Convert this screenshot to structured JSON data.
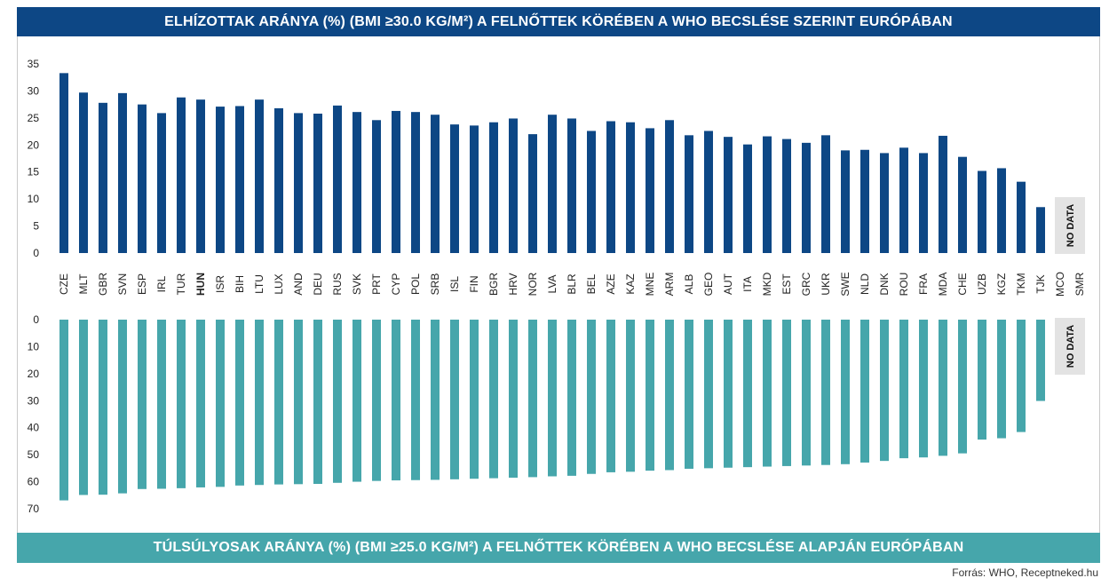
{
  "chart_data": [
    {
      "type": "bar",
      "title": "ELHÍZOTTAK ARÁNYA (%) (BMI ≥30.0 KG/M²) A FELNŐTTEK KÖRÉBEN A WHO BECSLÉSE SZERINT EURÓPÁBAN",
      "categories": [
        "CZE",
        "MLT",
        "GBR",
        "SVN",
        "ESP",
        "IRL",
        "TUR",
        "HUN",
        "ISR",
        "BIH",
        "LTU",
        "LUX",
        "AND",
        "DEU",
        "RUS",
        "SVK",
        "PRT",
        "CYP",
        "POL",
        "SRB",
        "ISL",
        "FIN",
        "BGR",
        "HRV",
        "NOR",
        "LVA",
        "BLR",
        "BEL",
        "AZE",
        "KAZ",
        "MNE",
        "ARM",
        "ALB",
        "GEO",
        "AUT",
        "ITA",
        "MKD",
        "EST",
        "GRC",
        "UKR",
        "SWE",
        "NLD",
        "DNK",
        "ROU",
        "FRA",
        "MDA",
        "CHE",
        "UZB",
        "KGZ",
        "TKM",
        "TJK",
        "MCO",
        "SMR"
      ],
      "values": [
        33.3,
        29.7,
        27.8,
        29.6,
        27.5,
        25.9,
        28.8,
        28.4,
        27.1,
        27.2,
        28.4,
        26.8,
        25.9,
        25.8,
        27.3,
        26.1,
        24.6,
        26.3,
        26.1,
        25.6,
        23.8,
        23.6,
        24.2,
        24.9,
        22.0,
        25.6,
        24.9,
        22.6,
        24.4,
        24.2,
        23.1,
        24.6,
        21.8,
        22.6,
        21.5,
        20.1,
        21.6,
        21.1,
        20.4,
        21.8,
        19.0,
        19.1,
        18.5,
        19.5,
        18.5,
        21.7,
        17.8,
        15.2,
        15.7,
        13.2,
        8.5,
        null,
        null
      ],
      "ylim": [
        0,
        35
      ],
      "yticks": [
        0,
        5,
        10,
        15,
        20,
        25,
        30,
        35
      ],
      "highlight": "HUN",
      "color": "#0d4785",
      "missing_label": "NO DATA"
    },
    {
      "type": "bar",
      "title": "TÚLSÚLYOSAK ARÁNYA (%) (BMI ≥25.0 KG/M²)   A FELNŐTTEK KÖRÉBEN A WHO BECSLÉSE ALAPJÁN EURÓPÁBAN",
      "categories": [
        "CZE",
        "MLT",
        "GBR",
        "SVN",
        "ESP",
        "IRL",
        "TUR",
        "HUN",
        "ISR",
        "BIH",
        "LTU",
        "LUX",
        "AND",
        "DEU",
        "RUS",
        "SVK",
        "PRT",
        "CYP",
        "POL",
        "SRB",
        "ISL",
        "FIN",
        "BGR",
        "HRV",
        "NOR",
        "LVA",
        "BLR",
        "BEL",
        "AZE",
        "KAZ",
        "MNE",
        "ARM",
        "ALB",
        "GEO",
        "AUT",
        "ITA",
        "MKD",
        "EST",
        "GRC",
        "UKR",
        "SWE",
        "NLD",
        "DNK",
        "ROU",
        "FRA",
        "MDA",
        "CHE",
        "UZB",
        "KGZ",
        "TKM",
        "TJK",
        "MCO",
        "SMR"
      ],
      "values": [
        66.9,
        64.9,
        64.8,
        64.3,
        62.7,
        62.6,
        62.4,
        62.1,
        61.9,
        61.4,
        61.2,
        61.0,
        60.9,
        60.8,
        60.4,
        60.0,
        59.7,
        59.5,
        59.4,
        59.3,
        59.1,
        58.9,
        58.7,
        58.5,
        58.3,
        58.0,
        57.8,
        57.1,
        56.5,
        56.3,
        55.9,
        55.7,
        55.2,
        55.0,
        54.8,
        54.6,
        54.4,
        54.2,
        54.0,
        53.8,
        53.5,
        52.9,
        52.3,
        51.3,
        51.0,
        50.4,
        49.5,
        44.4,
        43.9,
        41.6,
        30.1,
        null,
        null
      ],
      "ylim": [
        0,
        70
      ],
      "yticks": [
        0,
        10,
        20,
        30,
        40,
        50,
        60,
        70
      ],
      "orientation": "downward",
      "color": "#46a6ab",
      "missing_label": "NO DATA"
    }
  ],
  "source": "Forrás: WHO, Receptneked.hu"
}
